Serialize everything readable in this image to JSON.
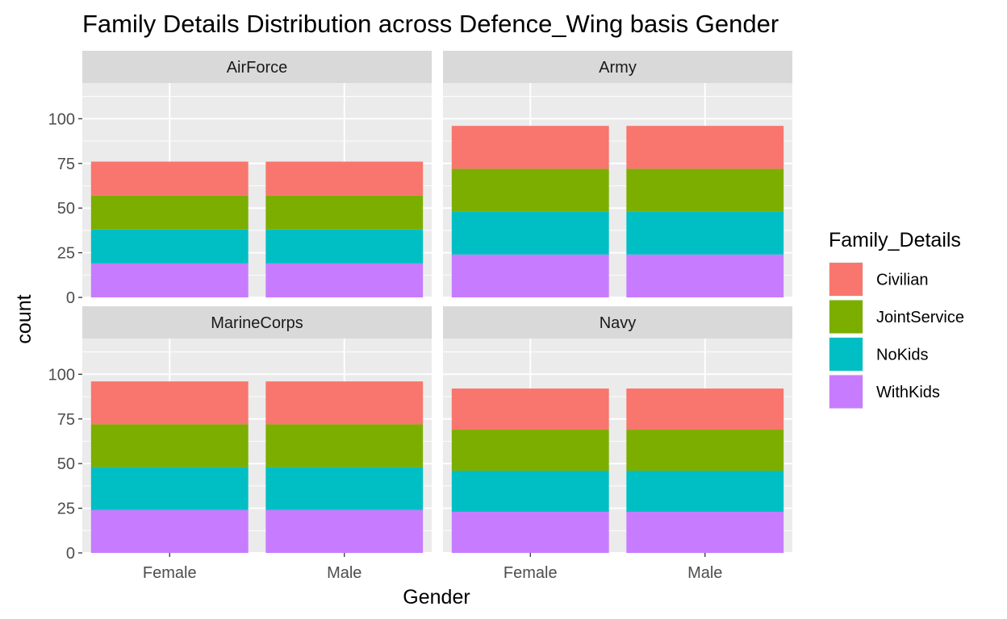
{
  "chart_data": {
    "type": "bar",
    "stacked": true,
    "title": "Family Details Distribution across Defence_Wing basis Gender",
    "xlabel": "Gender",
    "ylabel": "count",
    "ylim": [
      0,
      120
    ],
    "yticks": [
      0,
      25,
      50,
      75,
      100
    ],
    "categories": [
      "Female",
      "Male"
    ],
    "legend": {
      "title": "Family_Details",
      "placement": "right",
      "entries": [
        "Civilian",
        "JointService",
        "NoKids",
        "WithKids"
      ]
    },
    "colors": {
      "Civilian": "#F8766D",
      "JointService": "#7CAE00",
      "NoKids": "#00BFC4",
      "WithKids": "#C77CFF"
    },
    "stack_order_bottom_to_top": [
      "WithKids",
      "NoKids",
      "JointService",
      "Civilian"
    ],
    "grid": true,
    "facets": [
      {
        "label": "AirForce",
        "series": [
          {
            "name": "Civilian",
            "values": [
              19,
              19
            ]
          },
          {
            "name": "JointService",
            "values": [
              19,
              19
            ]
          },
          {
            "name": "NoKids",
            "values": [
              19,
              19
            ]
          },
          {
            "name": "WithKids",
            "values": [
              19,
              19
            ]
          }
        ]
      },
      {
        "label": "Army",
        "series": [
          {
            "name": "Civilian",
            "values": [
              24,
              24
            ]
          },
          {
            "name": "JointService",
            "values": [
              24,
              24
            ]
          },
          {
            "name": "NoKids",
            "values": [
              24,
              24
            ]
          },
          {
            "name": "WithKids",
            "values": [
              24,
              24
            ]
          }
        ]
      },
      {
        "label": "MarineCorps",
        "series": [
          {
            "name": "Civilian",
            "values": [
              24,
              24
            ]
          },
          {
            "name": "JointService",
            "values": [
              24,
              24
            ]
          },
          {
            "name": "NoKids",
            "values": [
              24,
              24
            ]
          },
          {
            "name": "WithKids",
            "values": [
              24,
              24
            ]
          }
        ]
      },
      {
        "label": "Navy",
        "series": [
          {
            "name": "Civilian",
            "values": [
              23,
              23
            ]
          },
          {
            "name": "JointService",
            "values": [
              23,
              23
            ]
          },
          {
            "name": "NoKids",
            "values": [
              23,
              23
            ]
          },
          {
            "name": "WithKids",
            "values": [
              23,
              23
            ]
          }
        ]
      }
    ]
  }
}
